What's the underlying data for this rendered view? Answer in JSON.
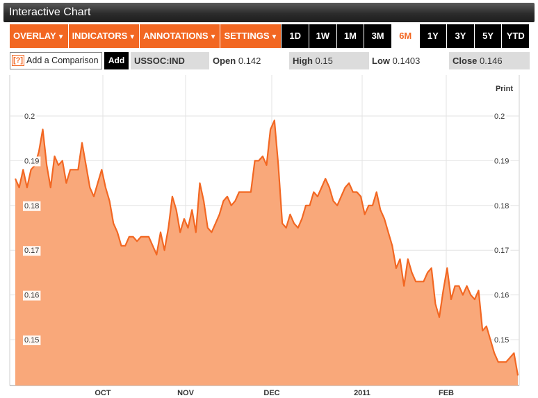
{
  "window": {
    "title": "Interactive Chart"
  },
  "menus": [
    {
      "label": "OVERLAY",
      "caret": "▼"
    },
    {
      "label": "INDICATORS",
      "caret": "▼"
    },
    {
      "label": "ANNOTATIONS",
      "caret": "▼"
    },
    {
      "label": "SETTINGS",
      "caret": "▼"
    }
  ],
  "ranges": [
    {
      "label": "1D",
      "active": false
    },
    {
      "label": "1W",
      "active": false
    },
    {
      "label": "1M",
      "active": false
    },
    {
      "label": "3M",
      "active": false
    },
    {
      "label": "6M",
      "active": true
    },
    {
      "label": "1Y",
      "active": false
    },
    {
      "label": "3Y",
      "active": false
    },
    {
      "label": "5Y",
      "active": false
    },
    {
      "label": "YTD",
      "active": false
    }
  ],
  "comparison": {
    "help_icon": "[?]",
    "placeholder": "Add a Comparison",
    "add_label": "Add"
  },
  "quote": {
    "symbol": "USSOC:IND",
    "open_label": "Open",
    "open": "0.142",
    "high_label": "High",
    "high": "0.15",
    "low_label": "Low",
    "low": "0.1403",
    "close_label": "Close",
    "close": "0.146"
  },
  "print_label": "Print",
  "colors": {
    "accent": "#f26722",
    "line": "#f26722",
    "fill": "#f9a87a"
  },
  "chart_data": {
    "type": "area",
    "x_labels": [
      "OCT",
      "NOV",
      "DEC",
      "2011",
      "FEB"
    ],
    "ylim": [
      0.14,
      0.21
    ],
    "y_ticks": [
      0.15,
      0.16,
      0.17,
      0.18,
      0.19,
      0.2
    ],
    "y_tick_labels": [
      "0.15",
      "0.16",
      "0.17",
      "0.18",
      "0.19",
      "0.2"
    ],
    "grid": true,
    "series": [
      {
        "values": [
          0.186,
          0.184,
          0.188,
          0.184,
          0.188,
          0.189,
          0.192,
          0.197,
          0.189,
          0.184,
          0.191,
          0.189,
          0.19,
          0.185,
          0.188,
          0.188,
          0.188,
          0.194,
          0.189,
          0.184,
          0.182,
          0.185,
          0.188,
          0.184,
          0.181,
          0.176,
          0.174,
          0.171,
          0.171,
          0.173,
          0.173,
          0.172,
          0.173,
          0.173,
          0.173,
          0.171,
          0.169,
          0.174,
          0.17,
          0.175,
          0.182,
          0.179,
          0.174,
          0.177,
          0.175,
          0.179,
          0.174,
          0.185,
          0.181,
          0.175,
          0.174,
          0.176,
          0.178,
          0.181,
          0.182,
          0.18,
          0.181,
          0.183,
          0.183,
          0.183,
          0.183,
          0.19,
          0.19,
          0.191,
          0.189,
          0.197,
          0.199,
          0.189,
          0.176,
          0.175,
          0.178,
          0.176,
          0.175,
          0.177,
          0.18,
          0.18,
          0.183,
          0.182,
          0.184,
          0.186,
          0.184,
          0.181,
          0.18,
          0.182,
          0.184,
          0.185,
          0.183,
          0.183,
          0.182,
          0.178,
          0.18,
          0.18,
          0.183,
          0.179,
          0.177,
          0.174,
          0.171,
          0.166,
          0.168,
          0.162,
          0.168,
          0.165,
          0.163,
          0.163,
          0.163,
          0.165,
          0.166,
          0.158,
          0.155,
          0.161,
          0.166,
          0.159,
          0.162,
          0.162,
          0.16,
          0.162,
          0.16,
          0.159,
          0.161,
          0.152,
          0.153,
          0.15,
          0.147,
          0.145,
          0.145,
          0.145,
          0.146,
          0.147,
          0.142
        ]
      }
    ]
  }
}
